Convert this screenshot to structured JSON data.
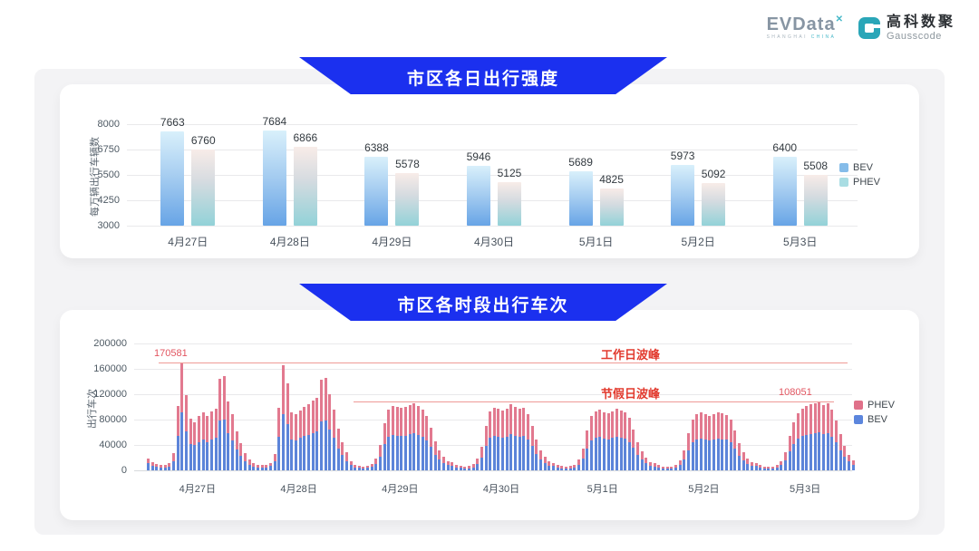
{
  "header": {
    "evdata": {
      "text": "EVData",
      "sup": "✕",
      "sub1": "SHANGHAI",
      "sub2": "CHINA"
    },
    "gausscode": {
      "cn": "高科数聚",
      "en": "Gausscode"
    }
  },
  "colors": {
    "banner_blue": "#1b30ef",
    "c1_bev_top": "#d9f0fb",
    "c1_bev_bottom": "#67a4e6",
    "c1_phev_top": "#f8ece8",
    "c1_phev_bottom": "#92d2d8",
    "c1_legend_bev": "#85bce9",
    "c1_legend_phev": "#a9dde3",
    "c2_phev": "#e2798f",
    "c2_bev": "#5c84d9",
    "ref_line": "#ef9a96",
    "ref_text": "#e23a2e",
    "ref_value_text": "#e25560"
  },
  "chart_data": [
    {
      "type": "bar",
      "title": "市区各日出行强度",
      "ylabel": "每万辆出行车辆数",
      "ymin": 3000,
      "ymax": 8000,
      "yticks": [
        3000,
        4250,
        5500,
        6750,
        8000
      ],
      "grid": true,
      "legend_position": "right",
      "legend": [
        "BEV",
        "PHEV"
      ],
      "categories": [
        "4月27日",
        "4月28日",
        "4月29日",
        "4月30日",
        "5月1日",
        "5月2日",
        "5月3日"
      ],
      "series": [
        {
          "name": "BEV",
          "values": [
            7663,
            7684,
            6388,
            5946,
            5689,
            5973,
            6400
          ]
        },
        {
          "name": "PHEV",
          "values": [
            6760,
            6866,
            5578,
            5125,
            4825,
            5092,
            5508
          ]
        }
      ]
    },
    {
      "type": "bar",
      "subtype": "stacked-hourly",
      "title": "市区各时段出行车次",
      "ylabel": "出行车次",
      "ymin": 0,
      "ymax": 200000,
      "yticks": [
        0,
        40000,
        80000,
        120000,
        160000,
        200000
      ],
      "grid": true,
      "legend_position": "right",
      "legend": [
        "PHEV",
        "BEV"
      ],
      "annotations": {
        "workday_peak_label": "工作日波峰",
        "workday_peak_value": 170581,
        "holiday_peak_label": "节假日波峰",
        "holiday_peak_value": 108051
      },
      "categories": [
        "4月27日",
        "4月28日",
        "4月29日",
        "4月30日",
        "5月1日",
        "5月2日",
        "5月3日"
      ],
      "days": [
        {
          "date": "4月27日",
          "bev": [
            11000,
            7000,
            5500,
            4500,
            4500,
            6000,
            15000,
            55000,
            91000,
            62000,
            42000,
            40000,
            45000,
            48000,
            45000,
            49000,
            52000,
            78000,
            80000,
            58000,
            47000,
            33000,
            23000,
            14000
          ],
          "phev": [
            8000,
            6000,
            4500,
            3500,
            3500,
            5000,
            12000,
            46000,
            79581,
            57000,
            39000,
            36000,
            41000,
            43000,
            41000,
            44000,
            45000,
            67000,
            69000,
            51000,
            42000,
            29000,
            20000,
            13000
          ]
        },
        {
          "date": "4月28日",
          "bev": [
            9000,
            6000,
            5000,
            4500,
            5000,
            6500,
            14000,
            53000,
            89000,
            73000,
            49000,
            47000,
            51000,
            54000,
            56000,
            59000,
            62000,
            77000,
            78000,
            64000,
            51000,
            35000,
            24000,
            15000
          ],
          "phev": [
            8000,
            5000,
            4000,
            3500,
            4000,
            5500,
            12000,
            45000,
            77000,
            64000,
            43000,
            41000,
            44000,
            46000,
            48000,
            51000,
            53000,
            66000,
            68000,
            56000,
            45000,
            31000,
            21000,
            14000
          ]
        },
        {
          "date": "4月29日",
          "bev": [
            8000,
            5000,
            4000,
            3500,
            4000,
            5500,
            10500,
            22000,
            41000,
            53000,
            56000,
            55000,
            54000,
            55000,
            57000,
            58000,
            56000,
            53000,
            47000,
            37000,
            25000,
            17000,
            11500,
            8000
          ],
          "phev": [
            6000,
            4000,
            3000,
            2500,
            3000,
            4500,
            8500,
            18000,
            34000,
            43000,
            46000,
            45000,
            44000,
            45000,
            46000,
            48000,
            46000,
            43000,
            39000,
            30000,
            21000,
            14000,
            9500,
            7000
          ]
        },
        {
          "date": "4月30日",
          "bev": [
            7000,
            5000,
            4000,
            3500,
            3500,
            5000,
            10000,
            20000,
            38000,
            51000,
            54000,
            53000,
            52000,
            53000,
            57000,
            55000,
            53000,
            54000,
            49000,
            38000,
            26000,
            17500,
            11500,
            7500
          ],
          "phev": [
            6000,
            4000,
            3000,
            2500,
            3000,
            4500,
            8000,
            17000,
            32000,
            42000,
            45000,
            44000,
            43000,
            44000,
            47000,
            45000,
            44000,
            45000,
            40000,
            32000,
            22000,
            14500,
            9500,
            6500
          ]
        },
        {
          "date": "5月1日",
          "bev": [
            6500,
            4500,
            3500,
            3000,
            3500,
            5000,
            9000,
            18500,
            34000,
            47000,
            51000,
            53000,
            50000,
            49000,
            51000,
            53000,
            52000,
            50000,
            45000,
            36000,
            25000,
            16500,
            11000,
            7000
          ],
          "phev": [
            5500,
            3500,
            3000,
            3000,
            3000,
            4000,
            8000,
            15500,
            29000,
            39000,
            42000,
            43000,
            42000,
            41000,
            42000,
            44000,
            43000,
            41000,
            38000,
            29000,
            20000,
            13500,
            9000,
            6000
          ]
        },
        {
          "date": "5月2日",
          "bev": [
            6000,
            4500,
            3500,
            3000,
            3500,
            4500,
            8500,
            17000,
            32000,
            44000,
            48000,
            50000,
            49000,
            47000,
            49000,
            50000,
            49000,
            48000,
            44000,
            34500,
            23500,
            16000,
            10500,
            7000
          ],
          "phev": [
            5000,
            3500,
            2500,
            2500,
            2500,
            4000,
            7500,
            14000,
            26000,
            36000,
            40000,
            41000,
            40000,
            39000,
            40000,
            42000,
            41000,
            39000,
            36000,
            28500,
            19500,
            13000,
            8500,
            6000
          ]
        },
        {
          "date": "5月3日",
          "bev": [
            6500,
            4500,
            3500,
            3000,
            3500,
            4500,
            8000,
            16000,
            30000,
            42000,
            50000,
            54000,
            56000,
            57000,
            58000,
            60000,
            57000,
            59000,
            53000,
            44000,
            31000,
            21500,
            14000,
            9000
          ],
          "phev": [
            5500,
            3500,
            2500,
            2500,
            2500,
            3500,
            7000,
            13000,
            24000,
            34000,
            40000,
            43000,
            45000,
            47000,
            48000,
            48051,
            46000,
            47000,
            43000,
            35000,
            26000,
            17500,
            11000,
            7000
          ]
        }
      ]
    }
  ]
}
